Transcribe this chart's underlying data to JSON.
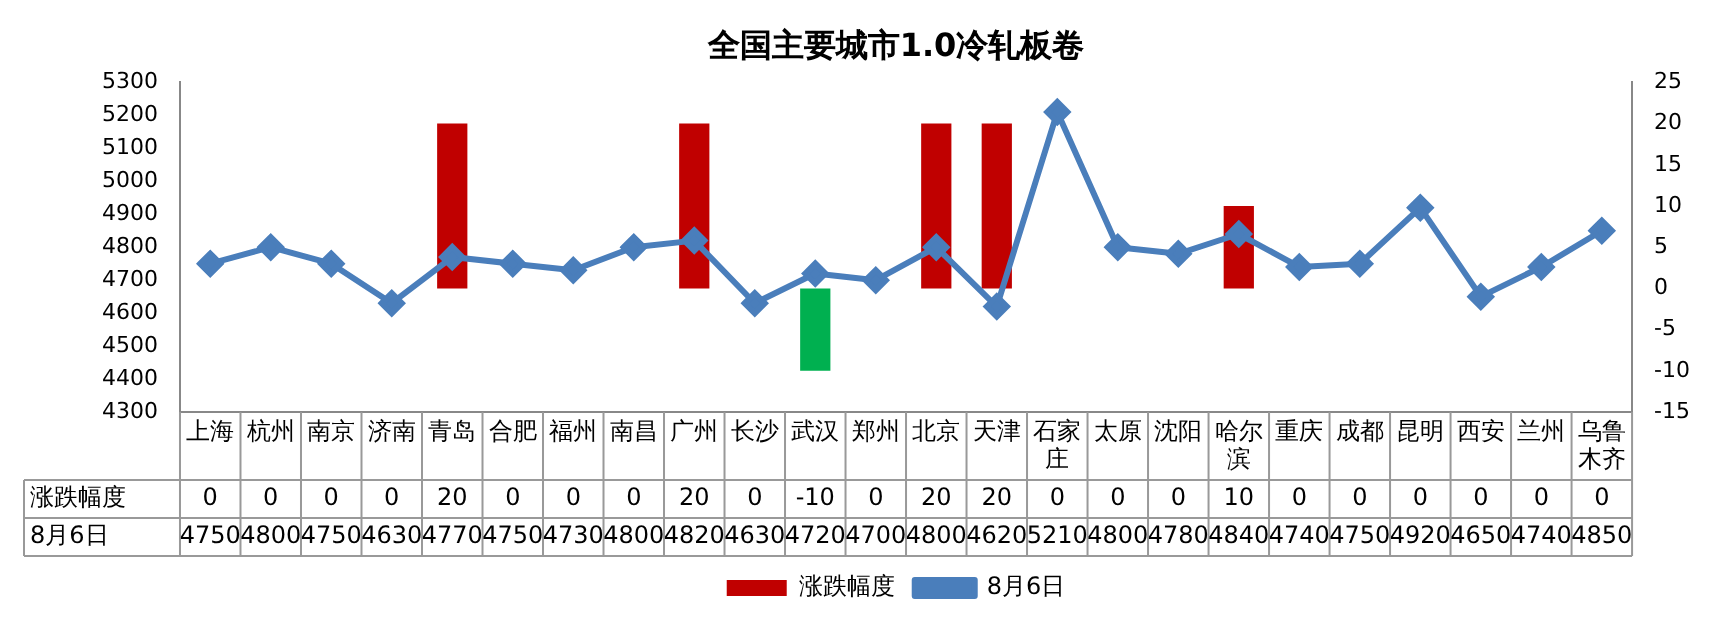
{
  "chart_data": {
    "type": "bar",
    "title": "全国主要城市1.0冷轧板卷",
    "categories": [
      "上海",
      "杭州",
      "南京",
      "济南",
      "青岛",
      "合肥",
      "福州",
      "南昌",
      "广州",
      "长沙",
      "武汉",
      "郑州",
      "北京",
      "天津",
      "石家庄",
      "太原",
      "沈阳",
      "哈尔滨",
      "重庆",
      "成都",
      "昆明",
      "西安",
      "兰州",
      "乌鲁木齐"
    ],
    "series": [
      {
        "name": "涨跌幅度",
        "axis": "y2",
        "color": "#c00000",
        "colors": [
          "#c00000",
          "#c00000",
          "#c00000",
          "#c00000",
          "#c00000",
          "#c00000",
          "#c00000",
          "#c00000",
          "#c00000",
          "#c00000",
          "#00b050",
          "#c00000",
          "#c00000",
          "#c00000",
          "#c00000",
          "#c00000",
          "#c00000",
          "#c00000",
          "#c00000",
          "#c00000",
          "#c00000",
          "#c00000",
          "#c00000",
          "#c00000"
        ],
        "values": [
          0,
          0,
          0,
          0,
          20,
          0,
          0,
          0,
          20,
          0,
          -10,
          0,
          20,
          20,
          0,
          0,
          0,
          10,
          0,
          0,
          0,
          0,
          0,
          0
        ]
      },
      {
        "name": "8月6日",
        "type": "line",
        "axis": "y",
        "color": "#4a7ebb",
        "values": [
          4750,
          4800,
          4750,
          4630,
          4770,
          4750,
          4730,
          4800,
          4820,
          4630,
          4720,
          4700,
          4800,
          4620,
          5210,
          4800,
          4780,
          4840,
          4740,
          4750,
          4920,
          4650,
          4740,
          4850
        ]
      }
    ],
    "ylim": [
      4300,
      5300
    ],
    "yticks": [
      4300,
      4400,
      4500,
      4600,
      4700,
      4800,
      4900,
      5000,
      5100,
      5200,
      5300
    ],
    "y2lim": [
      -15,
      25
    ],
    "y2ticks": [
      -15,
      -10,
      -5,
      0,
      5,
      10,
      15,
      20,
      25
    ],
    "marker": "diamond",
    "grid": false,
    "legend": "bottom",
    "data_labels": true
  }
}
